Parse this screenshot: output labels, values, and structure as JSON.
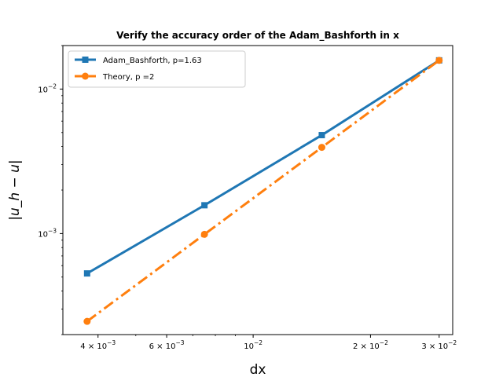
{
  "chart_data": {
    "type": "line",
    "title": "Verify the accuracy order of the Adam_Bashforth in x",
    "xlabel": "dx",
    "ylabel": "|u_h − u|",
    "x_scale": "log",
    "y_scale": "log",
    "xlim": [
      0.00325,
      0.0325
    ],
    "ylim": [
      0.0002,
      0.02
    ],
    "x_ticks": [
      {
        "value": 0.004,
        "base": "4 × 10",
        "exp": "−3"
      },
      {
        "value": 0.006,
        "base": "6 × 10",
        "exp": "−3"
      },
      {
        "value": 0.01,
        "base": "10",
        "exp": "−2"
      },
      {
        "value": 0.02,
        "base": "2 × 10",
        "exp": "−2"
      },
      {
        "value": 0.03,
        "base": "3 × 10",
        "exp": "−2"
      }
    ],
    "y_ticks": [
      {
        "value": 0.001,
        "base": "10",
        "exp": "−3"
      },
      {
        "value": 0.01,
        "base": "10",
        "exp": "−2"
      }
    ],
    "legend_position": "upper-left",
    "series": [
      {
        "name": "Adam_Bashforth, p=1.63",
        "color": "#1f77b4",
        "line_style": "solid",
        "marker": "square",
        "x": [
          0.00375,
          0.0075,
          0.015,
          0.03
        ],
        "y": [
          0.00053,
          0.00157,
          0.0048,
          0.0158
        ]
      },
      {
        "name": "Theory, p =2",
        "color": "#ff7f0e",
        "line_style": "dashdot",
        "marker": "circle",
        "x": [
          0.00375,
          0.0075,
          0.015,
          0.03
        ],
        "y": [
          0.000247,
          0.000988,
          0.00395,
          0.0158
        ]
      }
    ]
  }
}
